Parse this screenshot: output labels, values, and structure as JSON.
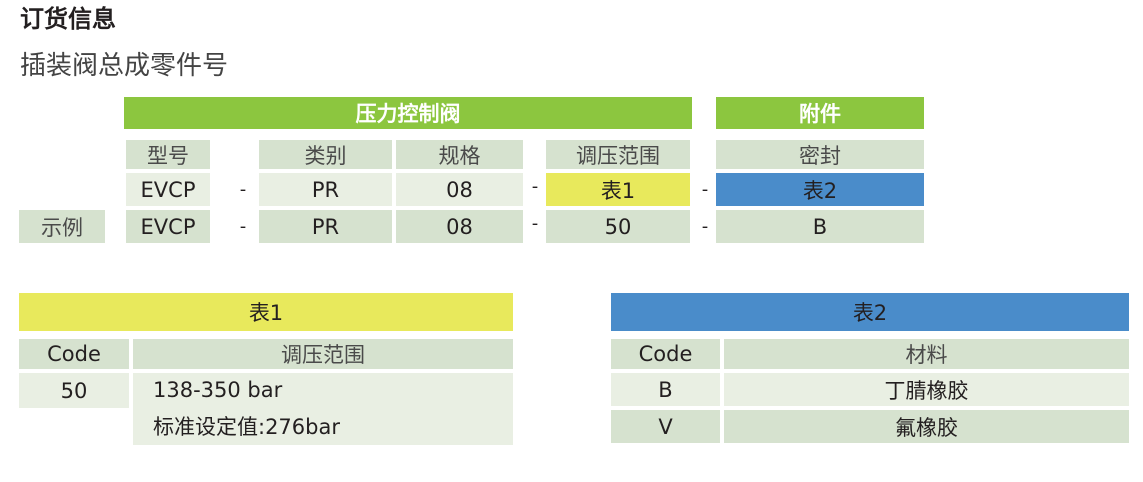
{
  "title": "订货信息",
  "subtitle": "插装阀总成零件号",
  "colors": {
    "green": "#8cc63f",
    "yellow": "#e8e95c",
    "blue": "#4a8cca",
    "header": "#d6e2cf",
    "row_light": "#e9efe3"
  },
  "order_code": {
    "group_main": "压力控制阀",
    "group_accessory": "附件",
    "headers": [
      "型号",
      "类别",
      "规格",
      "调压范围",
      "密封"
    ],
    "pattern": [
      "EVCP",
      "PR",
      "08",
      "表1",
      "表2"
    ],
    "example_label": "示例",
    "example": [
      "EVCP",
      "PR",
      "08",
      "50",
      "B"
    ],
    "separator": "-"
  },
  "table1": {
    "title": "表1",
    "headers": [
      "Code",
      "调压范围"
    ],
    "rows": [
      {
        "code": "50",
        "lines": [
          "138-350 bar",
          "标准设定值:276bar"
        ]
      }
    ]
  },
  "table2": {
    "title": "表2",
    "headers": [
      "Code",
      "材料"
    ],
    "rows": [
      {
        "code": "B",
        "material": "丁腈橡胶"
      },
      {
        "code": "V",
        "material": "氟橡胶"
      }
    ]
  }
}
